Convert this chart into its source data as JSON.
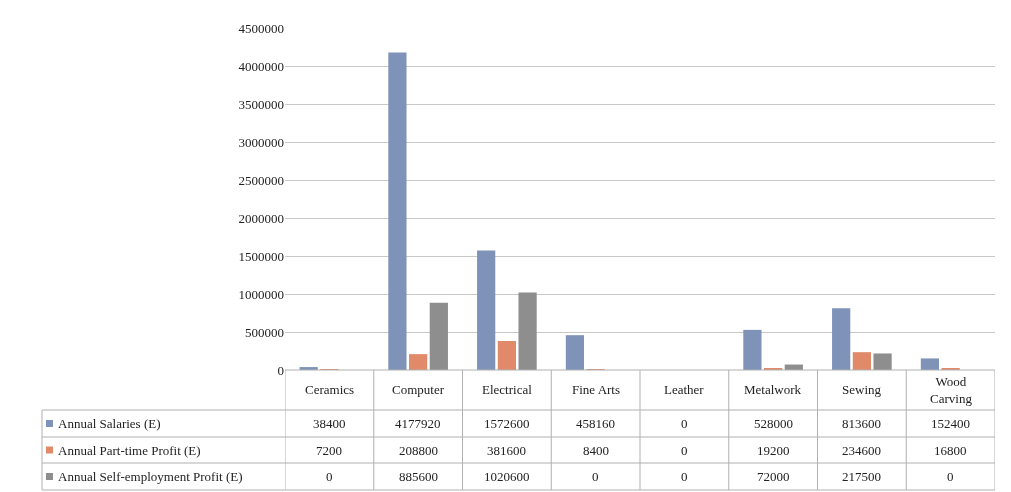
{
  "chart_data": {
    "type": "bar",
    "categories": [
      "Ceramics",
      "Computer",
      "Electrical",
      "Fine Arts",
      "Leather",
      "Metalwork",
      "Sewing",
      "Wood Carving"
    ],
    "series": [
      {
        "name": "Annual Salaries (E)",
        "color": "#7f93b8",
        "values": [
          38400,
          4177920,
          1572600,
          458160,
          0,
          528000,
          813600,
          152400
        ]
      },
      {
        "name": "Annual Part-time Profit (E)",
        "color": "#e08a6a",
        "values": [
          7200,
          208800,
          381600,
          8400,
          0,
          19200,
          234600,
          16800
        ]
      },
      {
        "name": "Annual Self-employment Profit (E)",
        "color": "#8e8e8e",
        "values": [
          0,
          885600,
          1020600,
          0,
          0,
          72000,
          217500,
          0
        ]
      }
    ],
    "ylim": [
      0,
      4500000
    ],
    "yticks": [
      0,
      500000,
      1000000,
      1500000,
      2000000,
      2500000,
      3000000,
      3500000,
      4000000,
      4500000
    ],
    "grid": "y",
    "legend": "bottom",
    "data_labels": true
  }
}
